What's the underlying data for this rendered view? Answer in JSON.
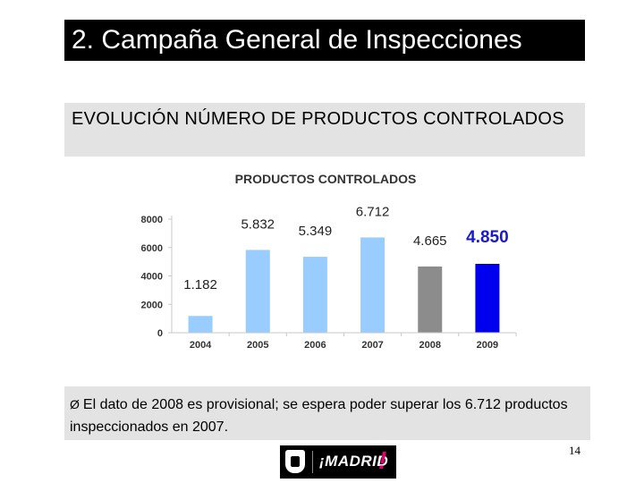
{
  "slide": {
    "title": "2. Campaña General de Inspecciones",
    "subtitle": "EVOLUCIÓN NÚMERO DE PRODUCTOS CONTROLADOS",
    "note_bullet": "Ø",
    "note": "El dato de 2008 es provisional; se espera poder superar los 6.712 productos inspeccionados en 2007.",
    "page_number": "14"
  },
  "logo": {
    "text": "¡MADRID",
    "mark": "!",
    "accent_color": "#e5006d"
  },
  "chart_data": {
    "type": "bar",
    "title": "PRODUCTOS CONTROLADOS",
    "categories": [
      "2004",
      "2005",
      "2006",
      "2007",
      "2008",
      "2009"
    ],
    "values": [
      1182,
      5832,
      5349,
      6712,
      4665,
      4850
    ],
    "data_labels": [
      "1.182",
      "5.832",
      "5.349",
      "6.712",
      "4.665",
      "4.850"
    ],
    "bar_colors": [
      "#99ccff",
      "#99ccff",
      "#99ccff",
      "#99ccff",
      "#8c8c8c",
      "#0000ee"
    ],
    "highlight_label_color": "#1a1acc",
    "yticks": [
      0,
      2000,
      4000,
      6000,
      8000
    ],
    "ylim": [
      0,
      8000
    ],
    "grid": false
  }
}
